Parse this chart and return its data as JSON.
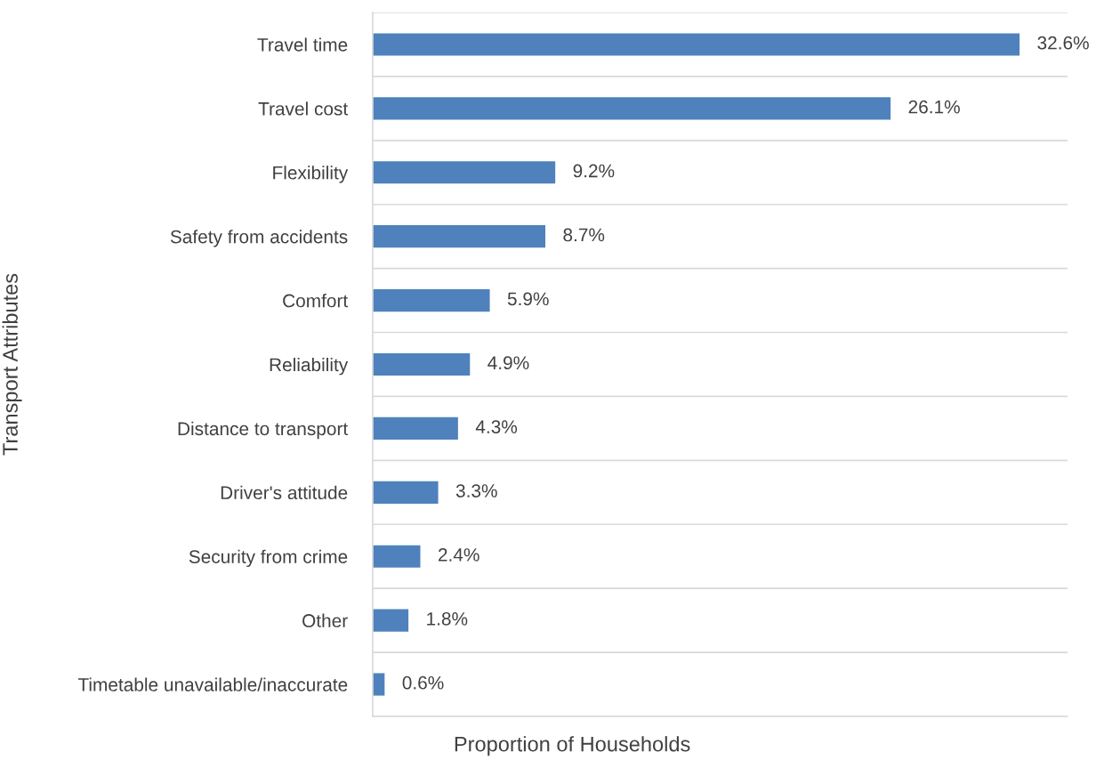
{
  "chart_data": {
    "type": "bar",
    "orientation": "horizontal",
    "xlabel": "Proportion of Households",
    "ylabel": "Transport Attributes",
    "categories": [
      "Travel time",
      "Travel cost",
      "Flexibility",
      "Safety from accidents",
      "Comfort",
      "Reliability",
      "Distance to transport",
      "Driver's attitude",
      "Security from crime",
      "Other",
      "Timetable unavailable/inaccurate"
    ],
    "values": [
      32.6,
      26.1,
      9.2,
      8.7,
      5.9,
      4.9,
      4.3,
      3.3,
      2.4,
      1.8,
      0.6
    ],
    "value_labels": [
      "32.6%",
      "26.1%",
      "9.2%",
      "8.7%",
      "5.9%",
      "4.9%",
      "4.3%",
      "3.3%",
      "2.4%",
      "1.8%",
      "0.6%"
    ],
    "color": "#4f81bd",
    "grid": "y",
    "legend": false
  }
}
